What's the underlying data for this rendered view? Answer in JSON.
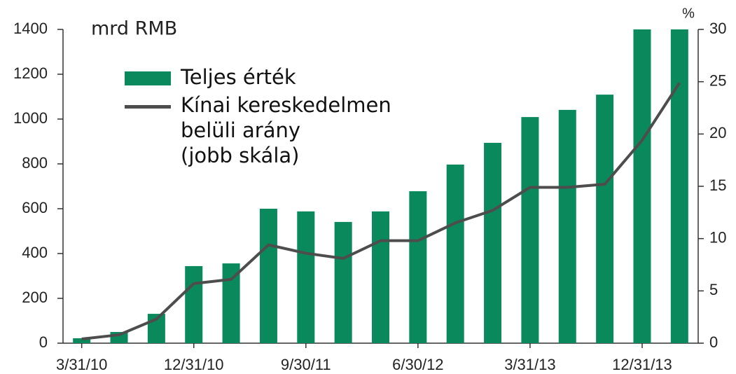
{
  "chart_data": {
    "type": "bar",
    "unit_label": "mrd RMB",
    "y2_unit_label": "%",
    "categories": [
      "3/31/10",
      null,
      null,
      "12/31/10",
      null,
      null,
      "9/30/11",
      null,
      null,
      "6/30/12",
      null,
      null,
      "3/31/13",
      null,
      null,
      "12/31/13",
      null
    ],
    "series": [
      {
        "name": "Teljes érték",
        "type": "bar",
        "color": "#0a8a5c",
        "values": [
          22,
          50,
          131,
          344,
          356,
          600,
          588,
          541,
          588,
          678,
          797,
          894,
          1009,
          1041,
          1109,
          1400,
          1400
        ]
      },
      {
        "name": "Kínai kereskedelmen\nbelüli arány\n(jobb skála)",
        "type": "line",
        "axis": "y2",
        "color": "#4d4d4d",
        "values": [
          0.4,
          0.8,
          2.3,
          5.7,
          6.1,
          9.4,
          8.6,
          8.1,
          9.8,
          9.8,
          11.5,
          12.7,
          14.9,
          14.9,
          15.2,
          19.4,
          24.9
        ]
      }
    ],
    "ylim": [
      0,
      1400
    ],
    "yticks": [
      0,
      200,
      400,
      600,
      800,
      1000,
      1200,
      1400
    ],
    "y2lim": [
      0,
      30
    ],
    "y2ticks": [
      0,
      5,
      10,
      15,
      20,
      25,
      30
    ]
  }
}
